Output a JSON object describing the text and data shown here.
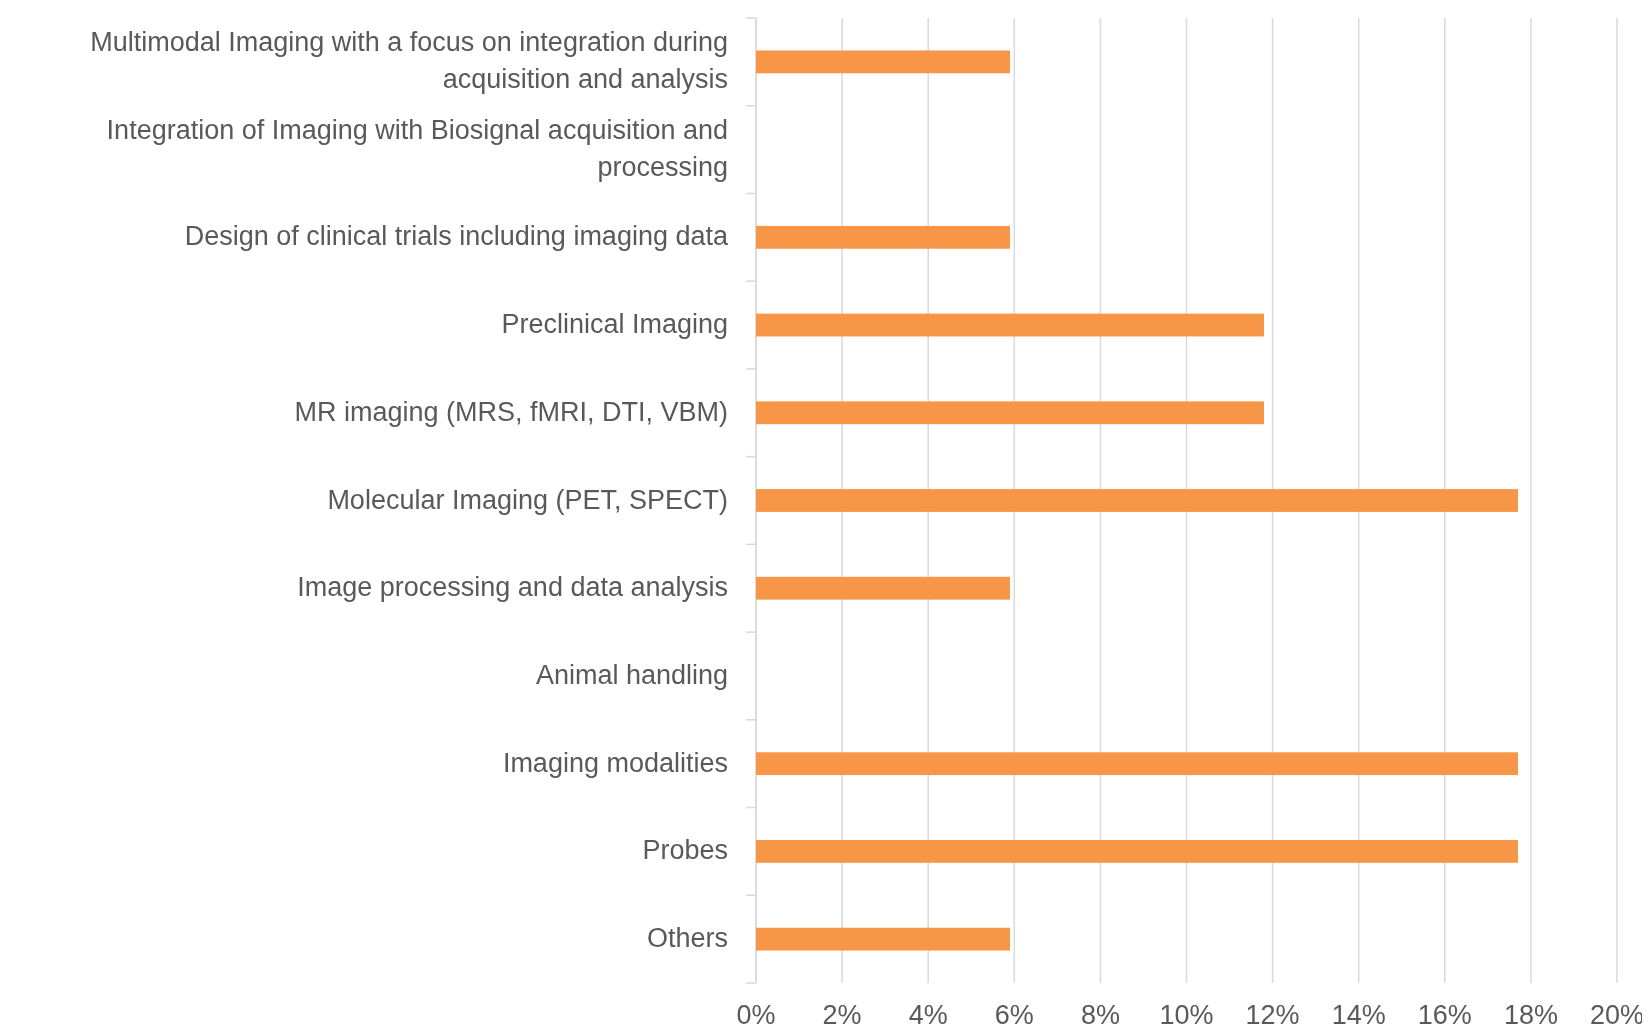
{
  "chart_data": {
    "type": "bar",
    "orientation": "horizontal",
    "categories": [
      "Multimodal Imaging with a focus on integration during acquisition and analysis",
      "Integration of Imaging with Biosignal acquisition and processing",
      "Design of clinical trials including imaging data",
      "Preclinical Imaging",
      "MR imaging (MRS, fMRI, DTI, VBM)",
      "Molecular Imaging (PET, SPECT)",
      "Image processing and data analysis",
      "Animal handling",
      "Imaging modalities",
      "Probes",
      "Others"
    ],
    "values": [
      5.9,
      0,
      5.9,
      11.8,
      11.8,
      17.7,
      5.9,
      0,
      17.7,
      17.7,
      5.9
    ],
    "color": "#f79646",
    "xlim": [
      0,
      20
    ],
    "xticks": [
      {
        "value": 0,
        "label": "0%"
      },
      {
        "value": 2,
        "label": "2%"
      },
      {
        "value": 4,
        "label": "4%"
      },
      {
        "value": 6,
        "label": "6%"
      },
      {
        "value": 8,
        "label": "8%"
      },
      {
        "value": 10,
        "label": "10%"
      },
      {
        "value": 12,
        "label": "12%"
      },
      {
        "value": 14,
        "label": "14%"
      },
      {
        "value": 16,
        "label": "16%"
      },
      {
        "value": 18,
        "label": "18%"
      },
      {
        "value": 20,
        "label": "20%"
      }
    ],
    "grid": "x"
  }
}
